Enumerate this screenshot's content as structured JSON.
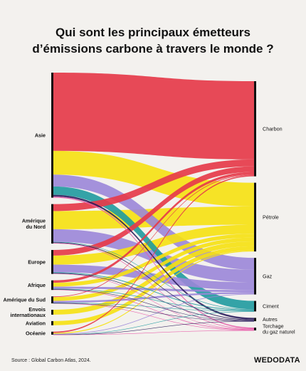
{
  "title_line1": "Qui sont les principaux émetteurs",
  "title_line2": "d’émissions carbone à travers le monde ?",
  "source_note": "Source : Global Carbon Atlas, 2024.",
  "logo": {
    "part1": "WEDO",
    "part2": "DATA"
  },
  "colors": {
    "background": "#f3f1ee",
    "Charbon": "#e63b4a",
    "Pétrole": "#f6e10f",
    "Gaz": "#9b86d8",
    "Ciment": "#1f9a9f",
    "Autres": "#2b1d5c",
    "Torchage": "#e85aa9",
    "node_bar": "#111111"
  },
  "chart_data": {
    "type": "sankey",
    "title": "Qui sont les principaux émetteurs d’émissions carbone à travers le monde ?",
    "sources": [
      {
        "name": "Asie",
        "label_lines": [
          "Asie"
        ]
      },
      {
        "name": "Amérique du Nord",
        "label_lines": [
          "Amérique",
          "du Nord"
        ]
      },
      {
        "name": "Europe",
        "label_lines": [
          "Europe"
        ]
      },
      {
        "name": "Afrique",
        "label_lines": [
          "Afrique"
        ]
      },
      {
        "name": "Amérique du Sud",
        "label_lines": [
          "Amérique du Sud"
        ]
      },
      {
        "name": "Envois internationaux",
        "label_lines": [
          "Envois",
          "internationaux"
        ]
      },
      {
        "name": "Aviation",
        "label_lines": [
          "Aviation"
        ]
      },
      {
        "name": "Océanie",
        "label_lines": [
          "Océanie"
        ]
      }
    ],
    "targets": [
      {
        "name": "Charbon",
        "label_lines": [
          "Charbon"
        ]
      },
      {
        "name": "Pétrole",
        "label_lines": [
          "Pétrole"
        ]
      },
      {
        "name": "Gaz",
        "label_lines": [
          "Gaz"
        ]
      },
      {
        "name": "Ciment",
        "label_lines": [
          "Ciment"
        ]
      },
      {
        "name": "Autres",
        "label_lines": [
          "Autres"
        ]
      },
      {
        "name": "Torchage du gaz naturel",
        "label_lines": [
          "Torchage",
          "du gaz naturel"
        ]
      }
    ],
    "links": [
      {
        "source": "Asie",
        "target": "Charbon",
        "value": 11.2
      },
      {
        "source": "Asie",
        "target": "Pétrole",
        "value": 3.4
      },
      {
        "source": "Asie",
        "target": "Gaz",
        "value": 1.7
      },
      {
        "source": "Asie",
        "target": "Ciment",
        "value": 1.2
      },
      {
        "source": "Asie",
        "target": "Autres",
        "value": 0.25
      },
      {
        "source": "Asie",
        "target": "Torchage du gaz naturel",
        "value": 0.15
      },
      {
        "source": "Amérique du Nord",
        "target": "Charbon",
        "value": 1.0
      },
      {
        "source": "Amérique du Nord",
        "target": "Pétrole",
        "value": 2.6
      },
      {
        "source": "Amérique du Nord",
        "target": "Gaz",
        "value": 1.8
      },
      {
        "source": "Amérique du Nord",
        "target": "Ciment",
        "value": 0.07
      },
      {
        "source": "Amérique du Nord",
        "target": "Autres",
        "value": 0.1
      },
      {
        "source": "Amérique du Nord",
        "target": "Torchage du gaz naturel",
        "value": 0.08
      },
      {
        "source": "Europe",
        "target": "Charbon",
        "value": 0.8
      },
      {
        "source": "Europe",
        "target": "Pétrole",
        "value": 1.3
      },
      {
        "source": "Europe",
        "target": "Gaz",
        "value": 1.1
      },
      {
        "source": "Europe",
        "target": "Ciment",
        "value": 0.1
      },
      {
        "source": "Europe",
        "target": "Autres",
        "value": 0.08
      },
      {
        "source": "Europe",
        "target": "Torchage du gaz naturel",
        "value": 0.05
      },
      {
        "source": "Afrique",
        "target": "Charbon",
        "value": 0.35
      },
      {
        "source": "Afrique",
        "target": "Pétrole",
        "value": 0.55
      },
      {
        "source": "Afrique",
        "target": "Gaz",
        "value": 0.3
      },
      {
        "source": "Afrique",
        "target": "Ciment",
        "value": 0.08
      },
      {
        "source": "Afrique",
        "target": "Autres",
        "value": 0.02
      },
      {
        "source": "Afrique",
        "target": "Torchage du gaz naturel",
        "value": 0.08
      },
      {
        "source": "Amérique du Sud",
        "target": "Charbon",
        "value": 0.1
      },
      {
        "source": "Amérique du Sud",
        "target": "Pétrole",
        "value": 0.55
      },
      {
        "source": "Amérique du Sud",
        "target": "Gaz",
        "value": 0.25
      },
      {
        "source": "Amérique du Sud",
        "target": "Ciment",
        "value": 0.05
      },
      {
        "source": "Amérique du Sud",
        "target": "Autres",
        "value": 0.02
      },
      {
        "source": "Amérique du Sud",
        "target": "Torchage du gaz naturel",
        "value": 0.03
      },
      {
        "source": "Envois internationaux",
        "target": "Pétrole",
        "value": 0.7
      },
      {
        "source": "Aviation",
        "target": "Pétrole",
        "value": 0.6
      },
      {
        "source": "Océanie",
        "target": "Charbon",
        "value": 0.17
      },
      {
        "source": "Océanie",
        "target": "Pétrole",
        "value": 0.14
      },
      {
        "source": "Océanie",
        "target": "Gaz",
        "value": 0.09
      },
      {
        "source": "Océanie",
        "target": "Ciment",
        "value": 0.01
      },
      {
        "source": "Océanie",
        "target": "Autres",
        "value": 0.01
      },
      {
        "source": "Océanie",
        "target": "Torchage du gaz naturel",
        "value": 0.01
      }
    ]
  }
}
